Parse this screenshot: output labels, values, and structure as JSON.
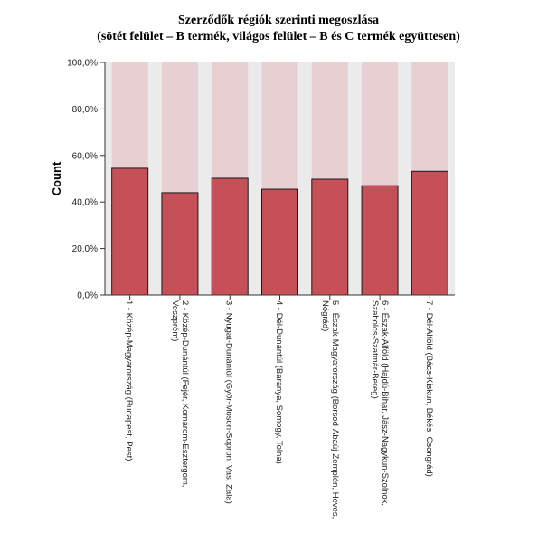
{
  "chart_data": {
    "type": "bar",
    "title": "Szerződők régiók szerinti megoszlása",
    "subtitle": "(sötét felület – B termék, világos felület – B és C termék együttesen)",
    "ylabel": "Count",
    "xlabel": "",
    "ylim": [
      0,
      100
    ],
    "yticks": [
      "0,0%",
      "20,0%",
      "40,0%",
      "60,0%",
      "80,0%",
      "100,0%"
    ],
    "grid": false,
    "stacked": true,
    "colors": {
      "dark": "#c65058",
      "light": "#e8cfd1",
      "plot_background": "#ebebeb",
      "edge": "#1a1a1a"
    },
    "categories": [
      [
        "1 - Közép-Magyarország (Budapest, Pest)"
      ],
      [
        "2 - Közép-Dunántúl (Fejér, Komárom-Esztergom,",
        "Veszprém)"
      ],
      [
        "3 - Nyugat-Dunántúl (Győr-Moson-Sopron, Vas, Zala)"
      ],
      [
        "4 - Dél-Dunántúl (Baranya, Somogy, Tolna)"
      ],
      [
        "5 - Észak-Magyarország (Borsod-Abaúj-Zemplén, Heves,",
        "Nógrád)"
      ],
      [
        "6 - Észak-Alföld (Hajdú-Bihar, Jász-Nagykun-Szolnok,",
        "Szabolcs-Szatmár-Bereg)"
      ],
      [
        "7 - Dél-Alföld (Bács-Kiskun, Békés, Csongrád)"
      ]
    ],
    "series": [
      {
        "values": [
          54.5,
          44,
          50.2,
          45.5,
          49.8,
          47,
          53.2
        ]
      },
      {
        "values": [
          45.5,
          56,
          49.8,
          54.5,
          50.2,
          53,
          46.8
        ]
      }
    ]
  }
}
